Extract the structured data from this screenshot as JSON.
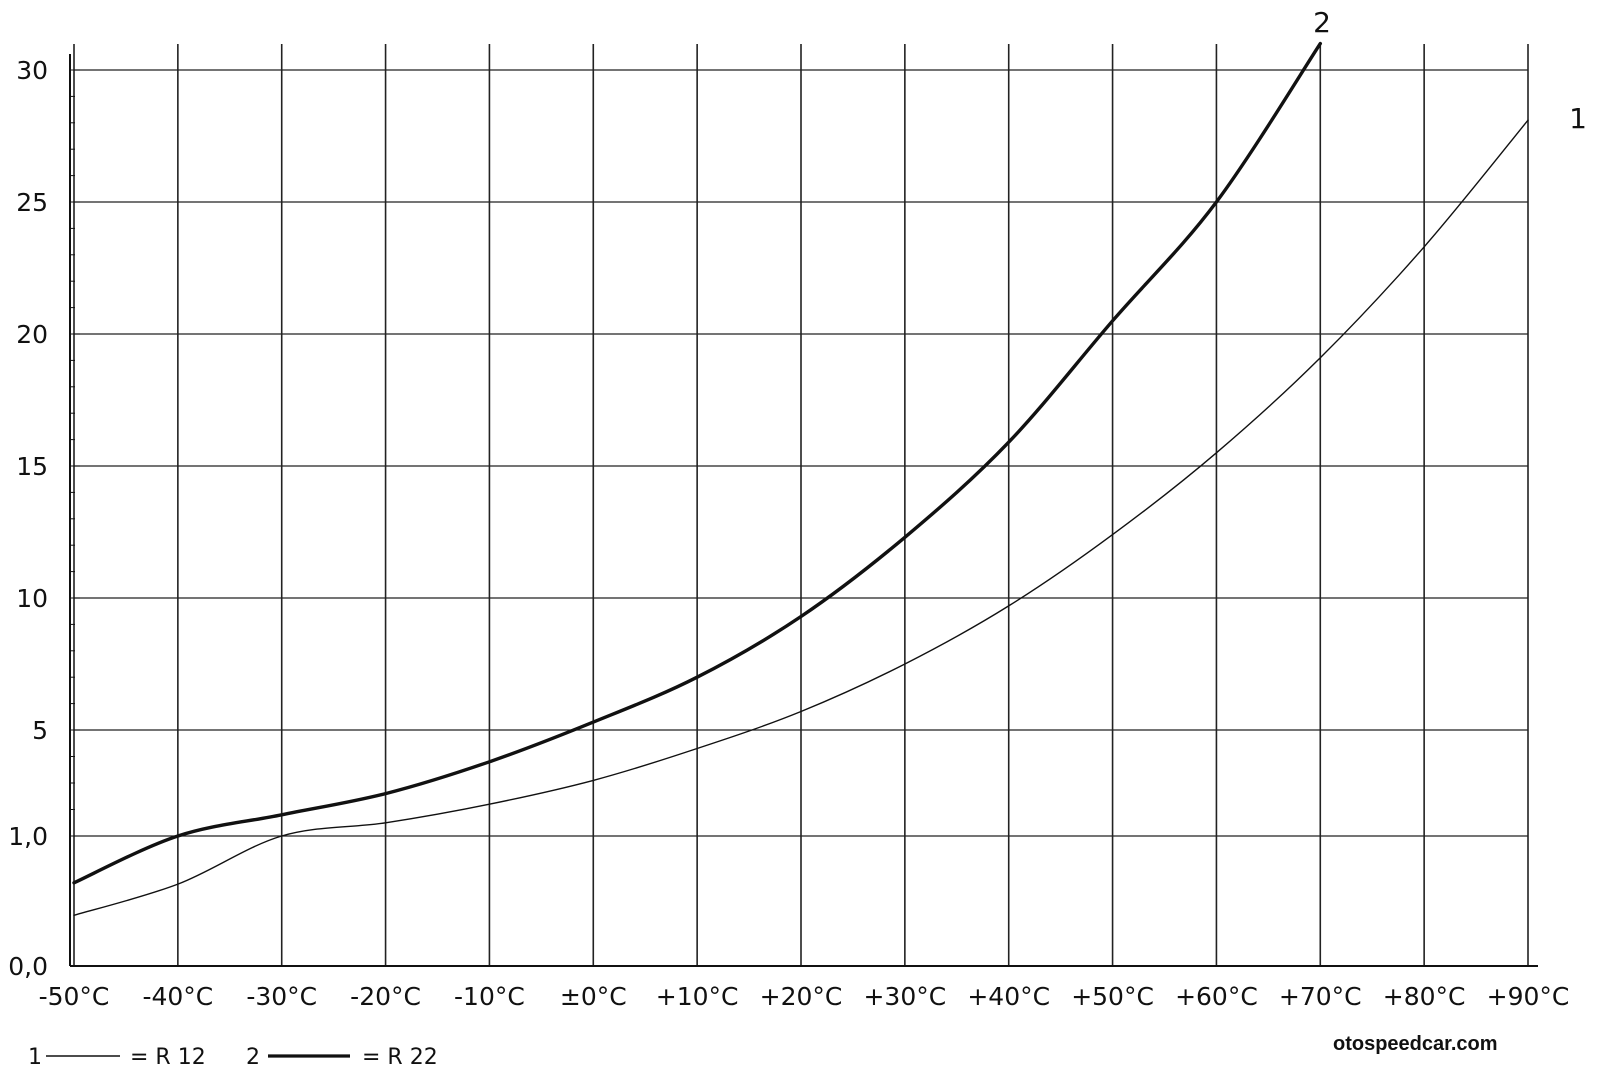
{
  "chart_data": {
    "type": "line",
    "title": "",
    "xlabel": "",
    "ylabel": "",
    "x": [
      -50,
      -40,
      -30,
      -20,
      -10,
      0,
      10,
      20,
      30,
      40,
      50,
      60,
      70,
      80,
      90
    ],
    "xticklabels": [
      "-50°C",
      "-40°C",
      "-30°C",
      "-20°C",
      "-10°C",
      "±0°C",
      "+10°C",
      "+20°C",
      "+30°C",
      "+40°C",
      "+50°C",
      "+60°C",
      "+70°C",
      "+80°C",
      "+90°C"
    ],
    "xlim": [
      -50,
      90
    ],
    "yticklabels": [
      "0,0",
      "1,0",
      "5",
      "10",
      "15",
      "20",
      "25",
      "30"
    ],
    "ylim": [
      "0,0",
      "30"
    ],
    "y_scale": "broken: 0,0 to 1,0 then 1,0 to 5 to 30",
    "grid": true,
    "series": [
      {
        "name": "1",
        "legend_value": "R 12",
        "line_style": "thin",
        "color": "#111111",
        "points": [
          [
            -50,
            0.39
          ],
          [
            -40,
            0.63
          ],
          [
            -30,
            1.0
          ],
          [
            -20,
            1.5
          ],
          [
            -10,
            2.2
          ],
          [
            0,
            3.1
          ],
          [
            10,
            4.3
          ],
          [
            20,
            5.7
          ],
          [
            30,
            7.5
          ],
          [
            40,
            9.7
          ],
          [
            50,
            12.4
          ],
          [
            60,
            15.5
          ],
          [
            70,
            19.1
          ],
          [
            80,
            23.3
          ],
          [
            90,
            28.1
          ]
        ]
      },
      {
        "name": "2",
        "legend_value": "R 22",
        "line_style": "thick",
        "color": "#111111",
        "points": [
          [
            -50,
            0.64
          ],
          [
            -40,
            1.0
          ],
          [
            -30,
            1.8
          ],
          [
            -20,
            2.6
          ],
          [
            -10,
            3.8
          ],
          [
            0,
            5.3
          ],
          [
            10,
            7.0
          ],
          [
            20,
            9.3
          ],
          [
            30,
            12.3
          ],
          [
            40,
            15.9
          ],
          [
            50,
            20.5
          ],
          [
            60,
            25.0
          ],
          [
            70,
            31.0
          ]
        ]
      }
    ],
    "legend": {
      "placement": "bottom-left",
      "entries": [
        {
          "number": "1",
          "equals": "= R 12"
        },
        {
          "number": "2",
          "equals": "= R 22"
        }
      ]
    },
    "annotations": [
      {
        "text": "1",
        "attached_to_series": "1"
      },
      {
        "text": "2",
        "attached_to_series": "2"
      }
    ]
  },
  "watermark": "otospeedcar.com"
}
